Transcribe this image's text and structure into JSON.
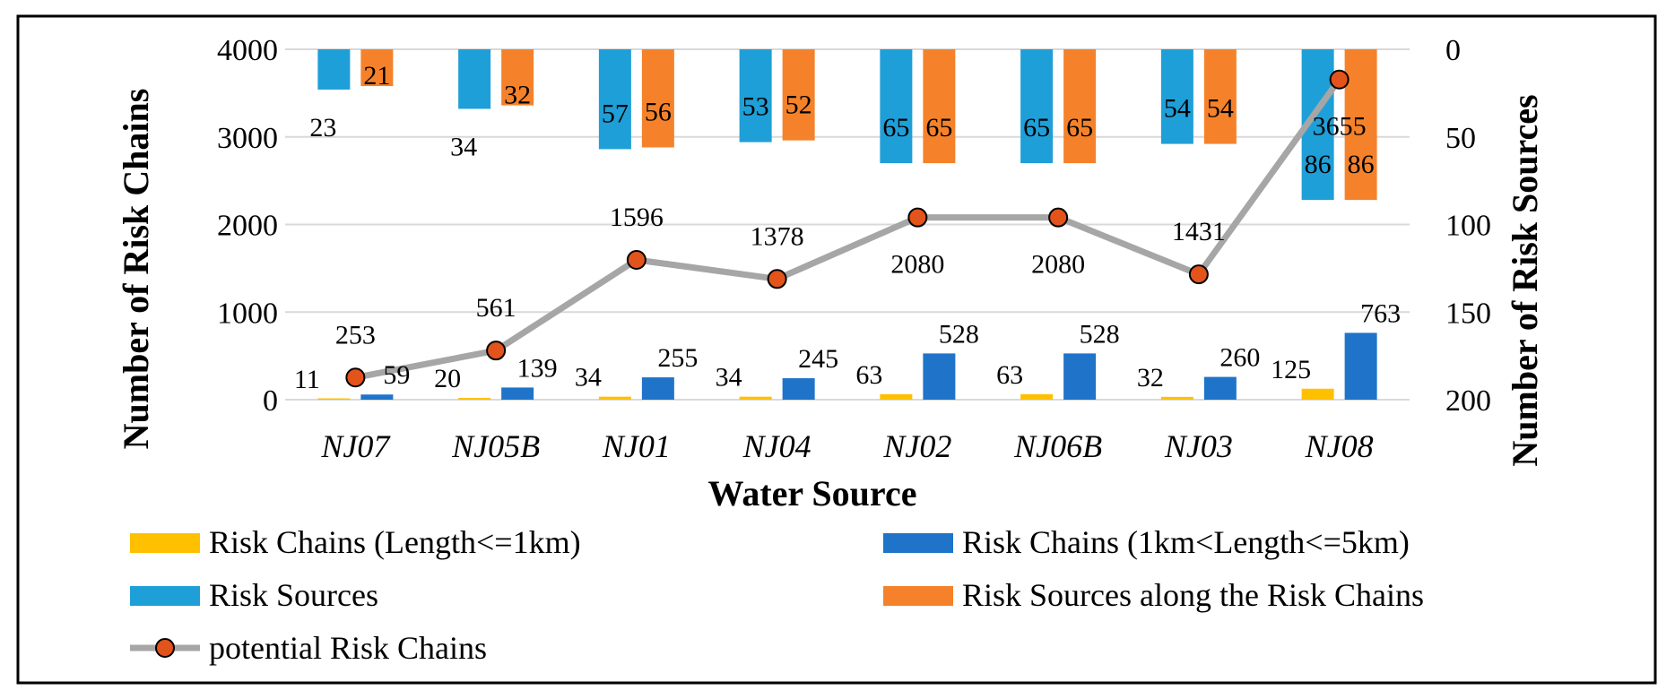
{
  "chart_data": {
    "type": "bar",
    "xlabel": "Water Source",
    "ylabel_left": "Number of Risk Chains",
    "ylabel_right": "Number of Risk Sources",
    "ylim_left": [
      0,
      4000
    ],
    "ylim_right_inverted": [
      0,
      200
    ],
    "left_ticks": [
      "4000",
      "3000",
      "2000",
      "1000",
      "0"
    ],
    "right_ticks": [
      "0",
      "50",
      "100",
      "150",
      "200"
    ],
    "categories": [
      "NJ07",
      "NJ05B",
      "NJ01",
      "NJ04",
      "NJ02",
      "NJ06B",
      "NJ03",
      "NJ08"
    ],
    "grid": true,
    "legend_position": "bottom",
    "series": [
      {
        "name": "Risk Chains (Length<=1km)",
        "axis": "left",
        "kind": "bar",
        "color": "#ffc000",
        "values": [
          11,
          20,
          34,
          34,
          63,
          63,
          32,
          125
        ],
        "labels": [
          "11",
          "20",
          "34",
          "34",
          "63",
          "63",
          "32",
          "125"
        ]
      },
      {
        "name": "Risk Chains (1km<Length<=5km)",
        "axis": "left",
        "kind": "bar",
        "color": "#1f74c9",
        "values": [
          59,
          139,
          255,
          245,
          528,
          528,
          260,
          763
        ],
        "labels": [
          "59",
          "139",
          "255",
          "245",
          "528",
          "528",
          "260",
          "763"
        ]
      },
      {
        "name": "Risk Sources",
        "axis": "right",
        "kind": "bar-inverted",
        "color": "#1f9fd8",
        "values": [
          23,
          34,
          57,
          53,
          65,
          65,
          54,
          86
        ],
        "labels": [
          "23",
          "34",
          "57",
          "53",
          "65",
          "65",
          "54",
          "86"
        ]
      },
      {
        "name": "Risk Sources along the Risk Chains",
        "axis": "right",
        "kind": "bar-inverted",
        "color": "#f5822a",
        "values": [
          21,
          32,
          56,
          52,
          65,
          65,
          54,
          86
        ],
        "labels": [
          "21",
          "32",
          "56",
          "52",
          "65",
          "65",
          "54",
          "86"
        ]
      },
      {
        "name": "potential Risk Chains",
        "axis": "left",
        "kind": "line",
        "color": "#a6a6a6",
        "marker_color": "#e2541b",
        "values": [
          253,
          561,
          1596,
          1378,
          2080,
          2080,
          1431,
          3655
        ],
        "labels": [
          "253",
          "561",
          "1596",
          "1378",
          "2080",
          "2080",
          "1431",
          "3655"
        ]
      }
    ]
  }
}
